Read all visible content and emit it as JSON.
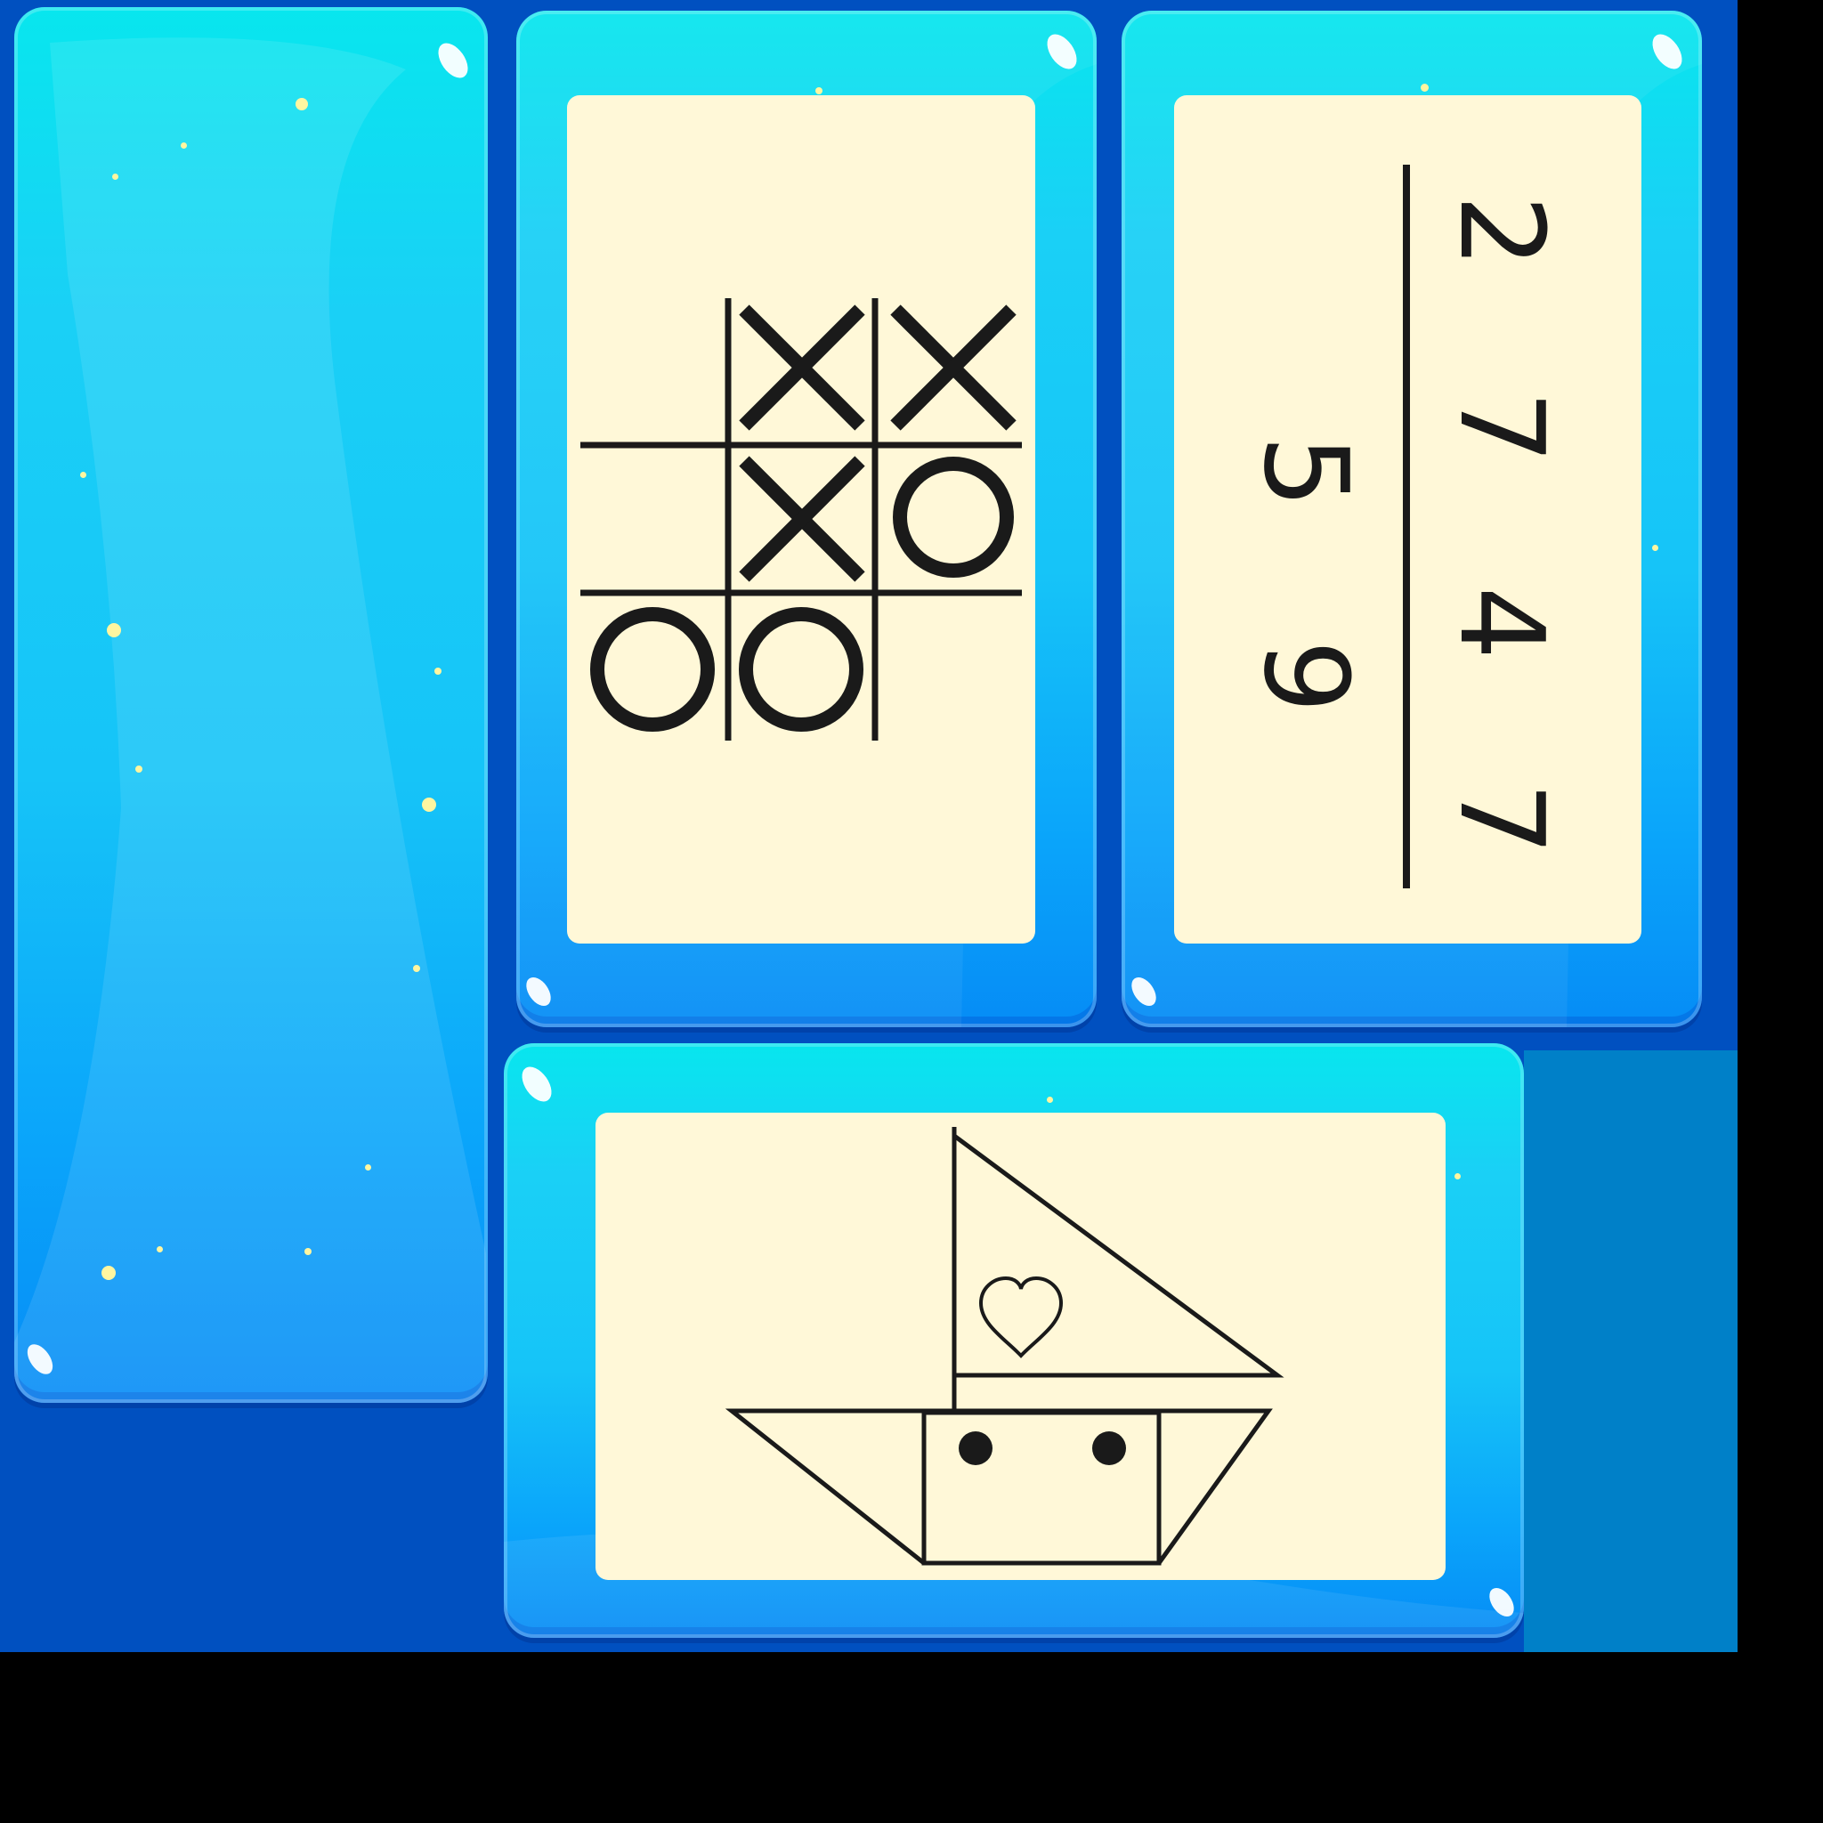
{
  "colors": {
    "backdrop": "#0050c0",
    "tile_top": "#08e6ee",
    "tile_bottom": "#068cf6",
    "card": "#fff8d8",
    "ink": "#1a1a1a"
  },
  "tiles": [
    {
      "id": "tile-empty",
      "content": "empty"
    },
    {
      "id": "tile-tictactoe",
      "content": "tic-tac-toe",
      "board": [
        [
          "",
          "X",
          "X"
        ],
        [
          "",
          "X",
          "O"
        ],
        [
          "O",
          "O",
          ""
        ]
      ]
    },
    {
      "id": "tile-numbers",
      "content": "numbers",
      "top_row": [
        "2",
        "7",
        "4",
        "7"
      ],
      "bottom_row": [
        "5",
        "9"
      ]
    },
    {
      "id": "tile-boat",
      "content": "sailboat",
      "icons": [
        "sail-icon",
        "heart-icon",
        "hull-icon",
        "porthole-icon"
      ]
    }
  ]
}
